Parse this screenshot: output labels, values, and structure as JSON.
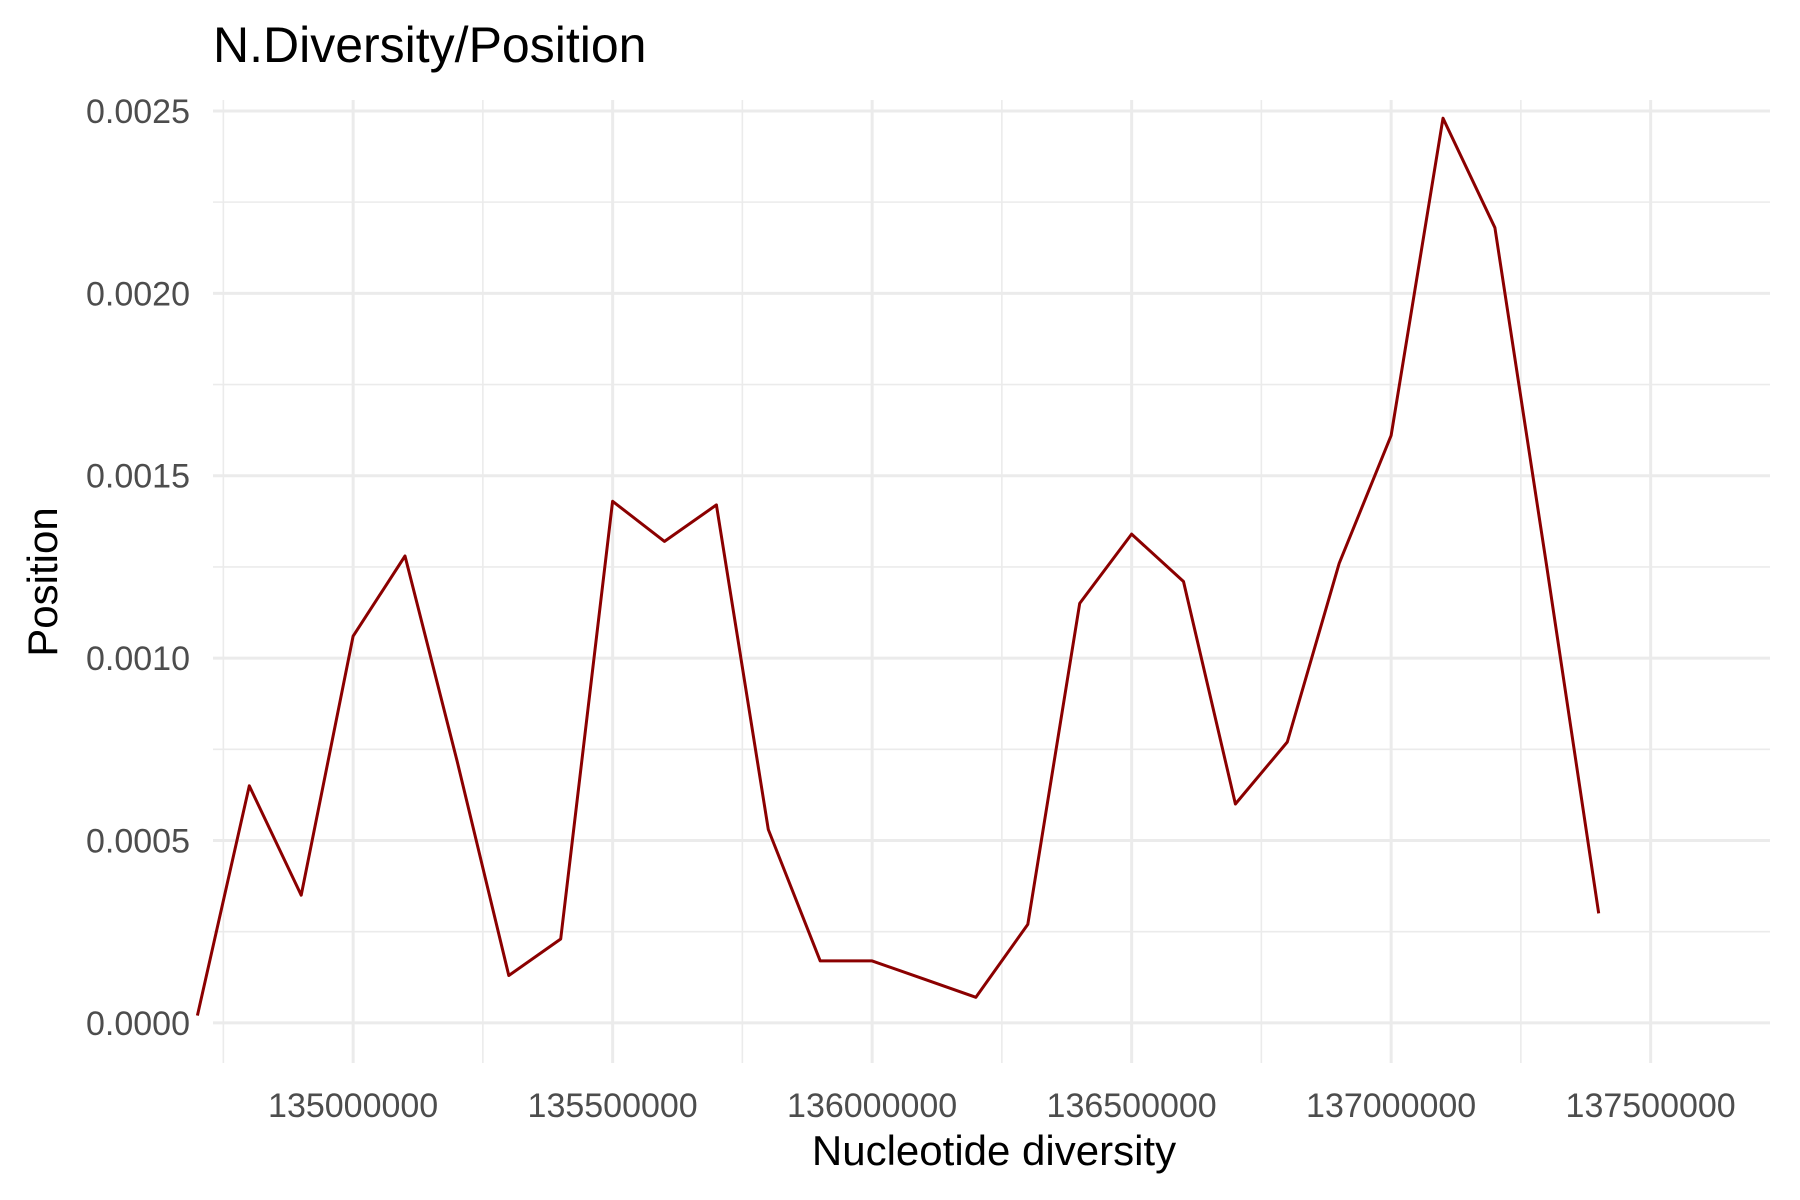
{
  "chart_data": {
    "type": "line",
    "title": "N.Diversity/Position",
    "xlabel": "Nucleotide diversity",
    "ylabel": "Position",
    "xlim": [
      134730000,
      137730000
    ],
    "ylim": [
      -0.00011,
      0.00253
    ],
    "x_ticks": [
      135000000,
      135500000,
      136000000,
      136500000,
      137000000,
      137500000
    ],
    "x_tick_labels": [
      "135000000",
      "135500000",
      "136000000",
      "136500000",
      "137000000",
      "137500000"
    ],
    "x_minor_ticks": [
      134750000,
      135250000,
      135750000,
      136250000,
      136750000,
      137250000,
      137750000
    ],
    "y_ticks": [
      0,
      0.0005,
      0.001,
      0.0015,
      0.002,
      0.0025
    ],
    "y_tick_labels": [
      "0.0000",
      "0.0005",
      "0.0010",
      "0.0015",
      "0.0020",
      "0.0025"
    ],
    "y_minor_ticks": [
      0.00025,
      0.00075,
      0.00125,
      0.00175,
      0.00225
    ],
    "grid": true,
    "line_color": "#8b0000",
    "series": [
      {
        "x": [
          134700000,
          134800000,
          134900000,
          135000000,
          135100000,
          135200000,
          135300000,
          135400000,
          135500000,
          135600000,
          135700000,
          135800000,
          135900000,
          136000000,
          136100000,
          136200000,
          136300000,
          136400000,
          136500000,
          136600000,
          136700000,
          136800000,
          136900000,
          137000000,
          137100000,
          137200000,
          137300000,
          137400000
        ],
        "y": [
          2e-05,
          0.00065,
          0.00035,
          0.00106,
          0.00128,
          0.00072,
          0.00013,
          0.00023,
          0.00143,
          0.00132,
          0.00142,
          0.00053,
          0.00017,
          0.00017,
          0.00012,
          7e-05,
          0.00027,
          0.00115,
          0.00134,
          0.00121,
          0.0006,
          0.00077,
          0.00126,
          0.00161,
          0.00248,
          0.00218,
          0.00125,
          0.0003
        ]
      }
    ]
  }
}
